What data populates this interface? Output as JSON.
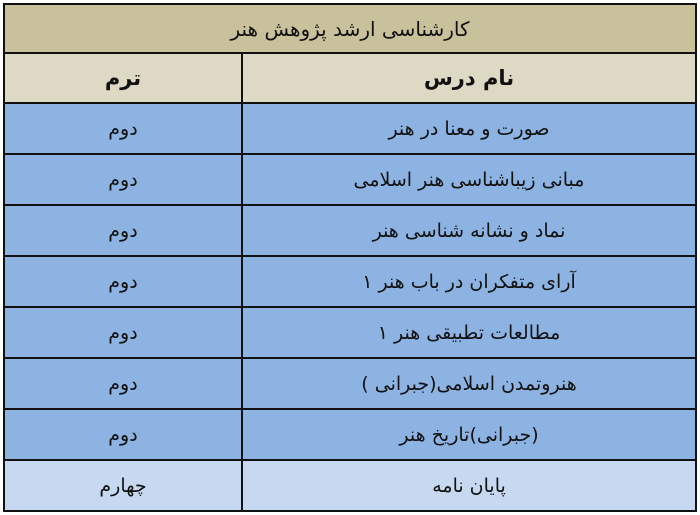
{
  "title": "کارشناسی ارشد پژوهش هنر",
  "headers": {
    "course": "نام درس",
    "term": "ترم"
  },
  "rows": [
    {
      "course": "صورت و معنا در هنر",
      "term": "دوم"
    },
    {
      "course": "مبانی زیباشناسی هنر اسلامی",
      "term": "دوم"
    },
    {
      "course": "نماد و نشانه شناسی هنر",
      "term": "دوم"
    },
    {
      "course": "آرای متفکران در باب هنر ۱",
      "term": "دوم"
    },
    {
      "course": "مطالعات تطبیقی هنر ۱",
      "term": "دوم"
    },
    {
      "course": "هنروتمدن اسلامی(جبرانی )",
      "term": "دوم"
    },
    {
      "course": "(جبرانی)تاریخ هنر",
      "term": "دوم"
    },
    {
      "course": "پایان نامه",
      "term": "چهارم"
    }
  ],
  "colors": {
    "title_bg": "#c8c19c",
    "header_bg": "#ddd9c4",
    "row_bg": "#8db3e2",
    "last_row_bg": "#c6d9f0"
  }
}
